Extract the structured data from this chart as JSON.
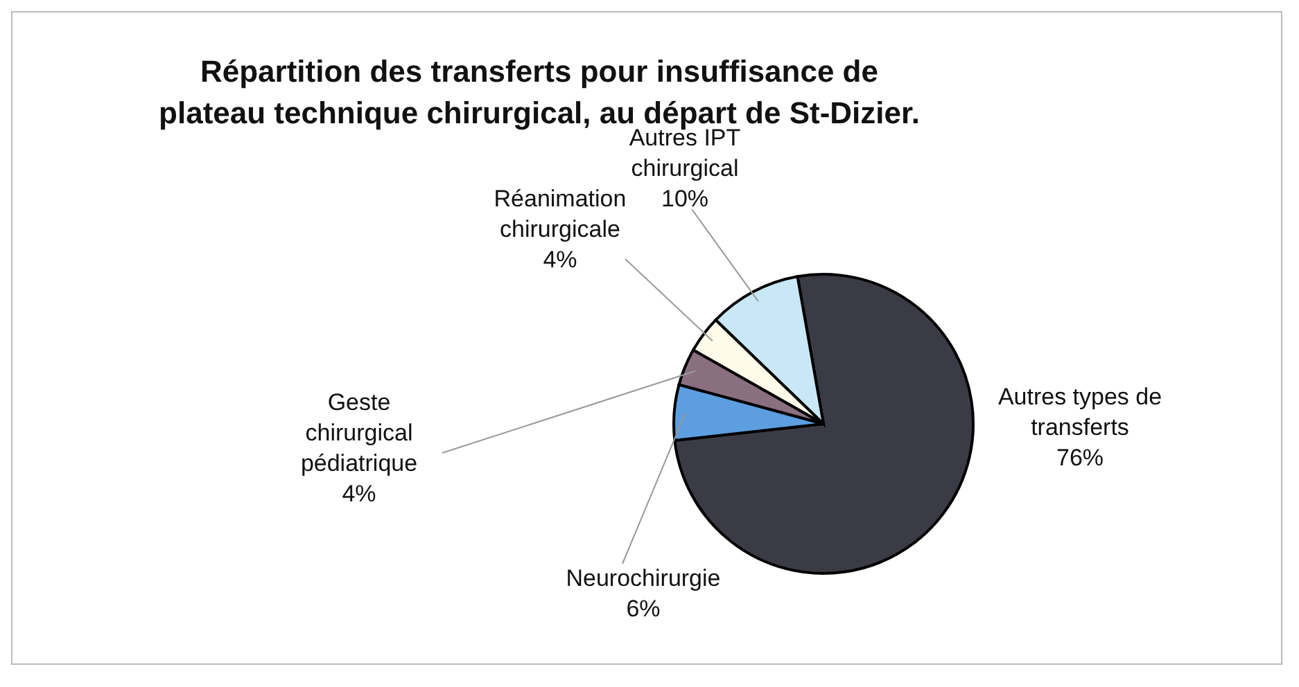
{
  "chart_data": {
    "type": "pie",
    "title": "Répartition des transferts pour insuffisance de plateau technique chirurgical, au départ de St-Dizier.",
    "categories": [
      "Autres types de transferts",
      "Neurochirurgie",
      "Geste chirurgical pédiatrique",
      "Réanimation chirurgicale",
      "Autres IPT chirurgical"
    ],
    "values": [
      76,
      6,
      4,
      4,
      10
    ],
    "value_labels": [
      "76%",
      "6%",
      "4%",
      "4%",
      "10%"
    ],
    "colors": [
      "#3b3b45",
      "#5c9ee0",
      "#8a6f80",
      "#fffbea",
      "#c9e8f7"
    ],
    "legend": false
  }
}
